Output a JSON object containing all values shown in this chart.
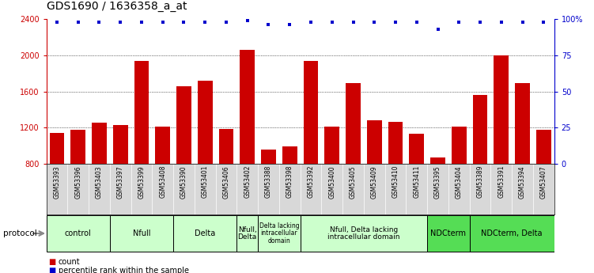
{
  "title": "GDS1690 / 1636358_a_at",
  "samples": [
    "GSM53393",
    "GSM53396",
    "GSM53403",
    "GSM53397",
    "GSM53399",
    "GSM53408",
    "GSM53390",
    "GSM53401",
    "GSM53406",
    "GSM53402",
    "GSM53388",
    "GSM53398",
    "GSM53392",
    "GSM53400",
    "GSM53405",
    "GSM53409",
    "GSM53410",
    "GSM53411",
    "GSM53395",
    "GSM53404",
    "GSM53389",
    "GSM53391",
    "GSM53394",
    "GSM53407"
  ],
  "counts": [
    1140,
    1175,
    1255,
    1230,
    1940,
    1210,
    1660,
    1720,
    1185,
    2060,
    960,
    990,
    1940,
    1215,
    1690,
    1280,
    1260,
    1130,
    870,
    1210,
    1560,
    2000,
    1690,
    1175
  ],
  "percentiles": [
    98,
    98,
    98,
    98,
    98,
    98,
    98,
    98,
    98,
    99,
    96,
    96,
    98,
    98,
    98,
    98,
    98,
    98,
    93,
    98,
    98,
    98,
    98,
    98
  ],
  "bar_color": "#cc0000",
  "dot_color": "#0000cc",
  "ylim_left": [
    800,
    2400
  ],
  "yticks_left": [
    800,
    1200,
    1600,
    2000,
    2400
  ],
  "ylim_right": [
    0,
    100
  ],
  "yticks_right": [
    0,
    25,
    50,
    75,
    100
  ],
  "yticklabels_right": [
    "0",
    "25",
    "50",
    "75",
    "100%"
  ],
  "groups": [
    {
      "label": "control",
      "start": 0,
      "end": 3,
      "color": "#ccffcc"
    },
    {
      "label": "Nfull",
      "start": 3,
      "end": 6,
      "color": "#ccffcc"
    },
    {
      "label": "Delta",
      "start": 6,
      "end": 9,
      "color": "#ccffcc"
    },
    {
      "label": "Nfull,\nDelta",
      "start": 9,
      "end": 10,
      "color": "#ccffcc"
    },
    {
      "label": "Delta lacking\nintracellular\ndomain",
      "start": 10,
      "end": 12,
      "color": "#ccffcc"
    },
    {
      "label": "Nfull, Delta lacking\nintracellular domain",
      "start": 12,
      "end": 18,
      "color": "#ccffcc"
    },
    {
      "label": "NDCterm",
      "start": 18,
      "end": 20,
      "color": "#55dd55"
    },
    {
      "label": "NDCterm, Delta",
      "start": 20,
      "end": 24,
      "color": "#55dd55"
    }
  ],
  "legend_count_label": "count",
  "legend_pct_label": "percentile rank within the sample",
  "protocol_label": "protocol",
  "tick_fontsize": 7,
  "bar_label_fontsize": 5.5,
  "group_fontsize": 6.5,
  "title_fontsize": 10
}
